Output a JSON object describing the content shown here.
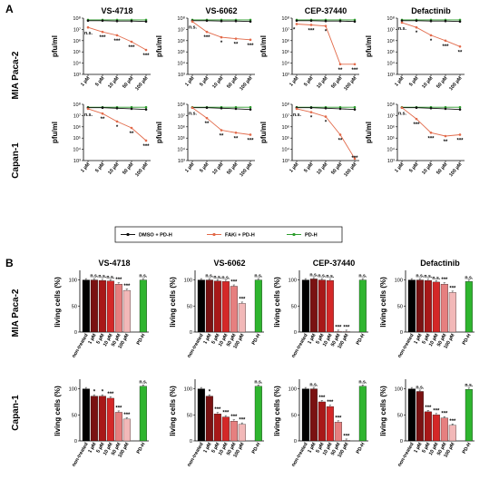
{
  "panels": [
    {
      "letter": "A",
      "rows": [
        "MIA Paca-2",
        "Capan-1"
      ]
    },
    {
      "letter": "B",
      "rows": [
        "MIA Paca-2",
        "Capan-1"
      ]
    }
  ],
  "drugs": [
    "VS-4718",
    "VS-6062",
    "CEP-37440",
    "Defactinib"
  ],
  "legend": {
    "entries": [
      {
        "label": "DMSO + PD-H",
        "color": "#111111"
      },
      {
        "label": "FAKi + PD-H",
        "color": "#e26a4a"
      },
      {
        "label": "PD-H",
        "color": "#2e9e2e"
      }
    ]
  },
  "colors": {
    "dmso": "#111111",
    "faki": "#e26a4a",
    "pdh": "#2e9e2e",
    "bar_nontreated": "#000000",
    "bar_1uM": "#7a1212",
    "bar_5uM": "#a81818",
    "bar_10uM": "#d42828",
    "bar_50uM": "#e67f7f",
    "bar_100uM": "#f2b8b8",
    "bar_pdh": "#2fb52f"
  },
  "chart_data": [
    {
      "type": "line",
      "panel": "A",
      "cell_line": "MIA Paca-2",
      "title": "VS-4718",
      "ylabel": "pfu/ml",
      "x": [
        "1 µM",
        "5 µM",
        "10 µM",
        "50 µM",
        "100 µM"
      ],
      "yscale": "log",
      "ylim": [
        1000,
        100000000
      ],
      "yticks": [
        "10³",
        "10⁴",
        "10⁵",
        "10⁶",
        "10⁷",
        "10⁸"
      ],
      "series": [
        {
          "name": "DMSO + PD-H",
          "values": [
            60000000,
            60000000,
            55000000,
            55000000,
            50000000
          ]
        },
        {
          "name": "FAKi + PD-H",
          "values": [
            15000000,
            6000000,
            3000000,
            800000,
            150000
          ]
        },
        {
          "name": "PD-H",
          "values": [
            70000000,
            70000000,
            70000000,
            70000000,
            70000000
          ]
        }
      ],
      "significance": [
        "n.s.",
        "***",
        "***",
        "***",
        "***"
      ]
    },
    {
      "type": "line",
      "panel": "A",
      "cell_line": "MIA Paca-2",
      "title": "VS-6062",
      "ylabel": "pfu/ml",
      "x": [
        "1 µM",
        "5 µM",
        "10 µM",
        "50 µM",
        "100 µM"
      ],
      "yscale": "log",
      "ylim": [
        1000,
        100000000
      ],
      "yticks": [
        "10³",
        "10⁴",
        "10⁵",
        "10⁶",
        "10⁷",
        "10⁸"
      ],
      "series": [
        {
          "name": "DMSO + PD-H",
          "values": [
            60000000,
            60000000,
            55000000,
            55000000,
            50000000
          ]
        },
        {
          "name": "FAKi + PD-H",
          "values": [
            50000000,
            6000000,
            2000000,
            1500000,
            1200000
          ]
        },
        {
          "name": "PD-H",
          "values": [
            70000000,
            70000000,
            70000000,
            70000000,
            70000000
          ]
        }
      ],
      "significance": [
        "n.s.",
        "***",
        "*",
        "**",
        "***"
      ]
    },
    {
      "type": "line",
      "panel": "A",
      "cell_line": "MIA Paca-2",
      "title": "CEP-37440",
      "ylabel": "pfu/ml",
      "x": [
        "1 µM",
        "5 µM",
        "10 µM",
        "50 µM",
        "100 µM"
      ],
      "yscale": "log",
      "ylim": [
        1000,
        100000000
      ],
      "yticks": [
        "10³",
        "10⁴",
        "10⁵",
        "10⁶",
        "10⁷",
        "10⁸"
      ],
      "series": [
        {
          "name": "DMSO + PD-H",
          "values": [
            60000000,
            60000000,
            55000000,
            55000000,
            50000000
          ]
        },
        {
          "name": "FAKi + PD-H",
          "values": [
            30000000,
            25000000,
            20000000,
            8000,
            8000
          ]
        },
        {
          "name": "PD-H",
          "values": [
            70000000,
            70000000,
            70000000,
            70000000,
            70000000
          ]
        }
      ],
      "significance": [
        "*",
        "***",
        "*",
        "**",
        "***"
      ]
    },
    {
      "type": "line",
      "panel": "A",
      "cell_line": "MIA Paca-2",
      "title": "Defactinib",
      "ylabel": "pfu/ml",
      "x": [
        "1 µM",
        "5 µM",
        "10 µM",
        "50 µM",
        "100 µM"
      ],
      "yscale": "log",
      "ylim": [
        1000,
        100000000
      ],
      "yticks": [
        "10³",
        "10⁴",
        "10⁵",
        "10⁶",
        "10⁷",
        "10⁸"
      ],
      "series": [
        {
          "name": "DMSO + PD-H",
          "values": [
            60000000,
            60000000,
            55000000,
            55000000,
            50000000
          ]
        },
        {
          "name": "FAKi + PD-H",
          "values": [
            40000000,
            15000000,
            3000000,
            1000000,
            300000
          ]
        },
        {
          "name": "PD-H",
          "values": [
            70000000,
            70000000,
            70000000,
            70000000,
            70000000
          ]
        }
      ],
      "significance": [
        "n.s.",
        "*",
        "*",
        "***",
        "**"
      ]
    },
    {
      "type": "line",
      "panel": "A",
      "cell_line": "Capan-1",
      "title": "",
      "ylabel": "pfu/ml",
      "x": [
        "1 µM",
        "5 µM",
        "10 µM",
        "50 µM",
        "100 µM"
      ],
      "yscale": "log",
      "ylim": [
        1000,
        100000000
      ],
      "yticks": [
        "10³",
        "10⁴",
        "10⁵",
        "10⁶",
        "10⁷",
        "10⁸"
      ],
      "series": [
        {
          "name": "DMSO + PD-H",
          "values": [
            50000000,
            50000000,
            45000000,
            40000000,
            35000000
          ]
        },
        {
          "name": "FAKi + PD-H",
          "values": [
            40000000,
            15000000,
            3000000,
            800000,
            60000
          ]
        },
        {
          "name": "PD-H",
          "values": [
            55000000,
            55000000,
            55000000,
            55000000,
            55000000
          ]
        }
      ],
      "significance": [
        "n.s.",
        "**",
        "*",
        "**",
        "***"
      ]
    },
    {
      "type": "line",
      "panel": "A",
      "cell_line": "Capan-1",
      "title": "",
      "ylabel": "pfu/ml",
      "x": [
        "1 µM",
        "5 µM",
        "10 µM",
        "50 µM",
        "100 µM"
      ],
      "yscale": "log",
      "ylim": [
        1000,
        100000000
      ],
      "yticks": [
        "10³",
        "10⁴",
        "10⁵",
        "10⁶",
        "10⁷",
        "10⁸"
      ],
      "series": [
        {
          "name": "DMSO + PD-H",
          "values": [
            50000000,
            50000000,
            45000000,
            40000000,
            35000000
          ]
        },
        {
          "name": "FAKi + PD-H",
          "values": [
            50000000,
            6000000,
            500000,
            300000,
            200000
          ]
        },
        {
          "name": "PD-H",
          "values": [
            55000000,
            55000000,
            55000000,
            55000000,
            55000000
          ]
        }
      ],
      "significance": [
        "n.s.",
        "**",
        "**",
        "**",
        "***"
      ]
    },
    {
      "type": "line",
      "panel": "A",
      "cell_line": "Capan-1",
      "title": "",
      "ylabel": "pfu/ml",
      "x": [
        "1 µM",
        "5 µM",
        "10 µM",
        "50 µM",
        "100 µM"
      ],
      "yscale": "log",
      "ylim": [
        1000,
        100000000
      ],
      "yticks": [
        "10³",
        "10⁴",
        "10⁵",
        "10⁶",
        "10⁷",
        "10⁸"
      ],
      "series": [
        {
          "name": "DMSO + PD-H",
          "values": [
            50000000,
            50000000,
            45000000,
            40000000,
            35000000
          ]
        },
        {
          "name": "FAKi + PD-H",
          "values": [
            40000000,
            20000000,
            8000000,
            200000,
            1500
          ]
        },
        {
          "name": "PD-H",
          "values": [
            55000000,
            55000000,
            55000000,
            55000000,
            55000000
          ]
        }
      ],
      "significance": [
        "n.s.",
        "*",
        "*",
        "**",
        "***"
      ]
    },
    {
      "type": "line",
      "panel": "A",
      "cell_line": "Capan-1",
      "title": "",
      "ylabel": "pfu/ml",
      "x": [
        "1 µM",
        "5 µM",
        "10 µM",
        "50 µM",
        "100 µM"
      ],
      "yscale": "log",
      "ylim": [
        1000,
        100000000
      ],
      "yticks": [
        "10³",
        "10⁴",
        "10⁵",
        "10⁶",
        "10⁷",
        "10⁸"
      ],
      "series": [
        {
          "name": "DMSO + PD-H",
          "values": [
            50000000,
            50000000,
            45000000,
            40000000,
            35000000
          ]
        },
        {
          "name": "FAKi + PD-H",
          "values": [
            50000000,
            5000000,
            300000,
            150000,
            200000
          ]
        },
        {
          "name": "PD-H",
          "values": [
            55000000,
            55000000,
            55000000,
            55000000,
            55000000
          ]
        }
      ],
      "significance": [
        "n.s.",
        "***",
        "***",
        "**",
        "***"
      ]
    },
    {
      "type": "bar",
      "panel": "B",
      "cell_line": "MIA Paca-2",
      "title": "VS-4718",
      "ylabel": "living cells (%)",
      "categories": [
        "non-treated",
        "1 µM",
        "5 µM",
        "10 µM",
        "50 µM",
        "100 µM",
        "PD-H"
      ],
      "ylim": [
        0,
        100
      ],
      "yticks": [
        "0",
        "50",
        "100"
      ],
      "values": [
        100,
        100,
        99,
        98,
        92,
        80,
        100
      ],
      "significance": [
        "",
        "n.s.",
        "n.s.",
        "n.s.",
        "***",
        "***",
        "n.s."
      ]
    },
    {
      "type": "bar",
      "panel": "B",
      "cell_line": "MIA Paca-2",
      "title": "VS-6062",
      "ylabel": "living cells (%)",
      "categories": [
        "non-treated",
        "1 µM",
        "5 µM",
        "10 µM",
        "50 µM",
        "100 µM",
        "PD-H"
      ],
      "ylim": [
        0,
        100
      ],
      "yticks": [
        "0",
        "50",
        "100"
      ],
      "values": [
        100,
        100,
        98,
        97,
        88,
        55,
        100
      ],
      "significance": [
        "",
        "n.s.",
        "n.s.",
        "n.s.",
        "***",
        "***",
        "n.s."
      ]
    },
    {
      "type": "bar",
      "panel": "B",
      "cell_line": "MIA Paca-2",
      "title": "CEP-37440",
      "ylabel": "living cells (%)",
      "categories": [
        "non-treated",
        "1 µM",
        "5 µM",
        "10 µM",
        "50 µM",
        "100 µM",
        "PD-H"
      ],
      "ylim": [
        0,
        100
      ],
      "yticks": [
        "0",
        "50",
        "100"
      ],
      "values": [
        100,
        102,
        100,
        99,
        1,
        1,
        100
      ],
      "significance": [
        "",
        "n.s.",
        "n.s.",
        "n.s.",
        "***",
        "***",
        "n.s."
      ]
    },
    {
      "type": "bar",
      "panel": "B",
      "cell_line": "MIA Paca-2",
      "title": "Defactinib",
      "ylabel": "living cells (%)",
      "categories": [
        "non-treated",
        "1 µM",
        "5 µM",
        "10 µM",
        "50 µM",
        "100 µM",
        "PD-H"
      ],
      "ylim": [
        0,
        100
      ],
      "yticks": [
        "0",
        "50",
        "100"
      ],
      "values": [
        100,
        100,
        99,
        96,
        92,
        76,
        97
      ],
      "significance": [
        "",
        "n.s.",
        "n.s.",
        "n.s.",
        "***",
        "***",
        "n.s."
      ]
    },
    {
      "type": "bar",
      "panel": "B",
      "cell_line": "Capan-1",
      "title": "",
      "ylabel": "living cells (%)",
      "categories": [
        "non-treated",
        "1 µM",
        "5 µM",
        "10 µM",
        "50 µM",
        "100 µM",
        "PD-H"
      ],
      "ylim": [
        0,
        100
      ],
      "yticks": [
        "0",
        "50",
        "100"
      ],
      "values": [
        100,
        86,
        86,
        82,
        55,
        42,
        105
      ],
      "significance": [
        "",
        "*",
        "*",
        "***",
        "***",
        "***",
        "n.s."
      ]
    },
    {
      "type": "bar",
      "panel": "B",
      "cell_line": "Capan-1",
      "title": "",
      "ylabel": "living cells (%)",
      "categories": [
        "non-treated",
        "1 µM",
        "5 µM",
        "10 µM",
        "50 µM",
        "100 µM",
        "PD-H"
      ],
      "ylim": [
        0,
        100
      ],
      "yticks": [
        "0",
        "50",
        "100"
      ],
      "values": [
        100,
        86,
        52,
        46,
        38,
        32,
        105
      ],
      "significance": [
        "",
        "*",
        "***",
        "***",
        "***",
        "***",
        "n.s."
      ]
    },
    {
      "type": "bar",
      "panel": "B",
      "cell_line": "Capan-1",
      "title": "",
      "ylabel": "living cells (%)",
      "categories": [
        "non-treated",
        "1 µM",
        "5 µM",
        "10 µM",
        "50 µM",
        "100 µM",
        "PD-H"
      ],
      "ylim": [
        0,
        100
      ],
      "yticks": [
        "0",
        "50",
        "100"
      ],
      "values": [
        100,
        100,
        75,
        66,
        36,
        1,
        105
      ],
      "significance": [
        "",
        "n.s.",
        "***",
        "***",
        "***",
        "***",
        "n.s."
      ]
    },
    {
      "type": "bar",
      "panel": "B",
      "cell_line": "Capan-1",
      "title": "",
      "ylabel": "living cells (%)",
      "categories": [
        "non-treated",
        "1 µM",
        "5 µM",
        "10 µM",
        "50 µM",
        "100 µM",
        "PD-H"
      ],
      "ylim": [
        0,
        100
      ],
      "yticks": [
        "0",
        "50",
        "100"
      ],
      "values": [
        100,
        95,
        56,
        50,
        44,
        30,
        99
      ],
      "significance": [
        "",
        "n.s.",
        "***",
        "***",
        "***",
        "***",
        "n.s."
      ]
    }
  ]
}
